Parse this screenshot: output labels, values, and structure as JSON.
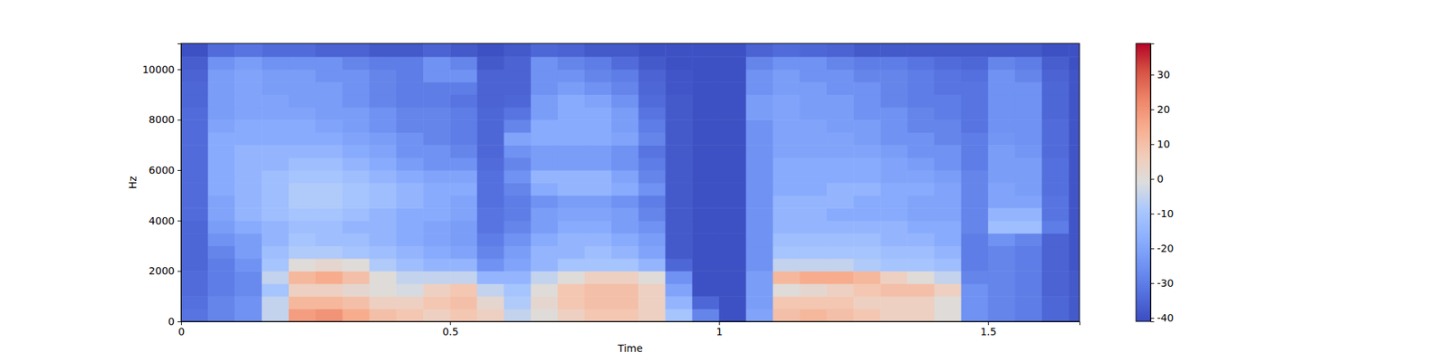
{
  "chart_data": {
    "type": "heatmap",
    "xlabel": "Time",
    "ylabel": "Hz",
    "color": "coolwarm",
    "xlim": [
      0,
      1.67
    ],
    "ylim": [
      0,
      11025
    ],
    "xticks": [
      0,
      0.5,
      1,
      1.5
    ],
    "yticks": [
      0,
      2000,
      4000,
      6000,
      8000,
      10000
    ],
    "colorbar_range": [
      -41,
      39
    ],
    "colorbar_ticks": [
      -40,
      -30,
      -20,
      -10,
      0,
      10,
      20,
      30
    ],
    "x": [
      0,
      0.05,
      0.1,
      0.15,
      0.2,
      0.25,
      0.3,
      0.35,
      0.4,
      0.45,
      0.5,
      0.55,
      0.6,
      0.65,
      0.7,
      0.75,
      0.8,
      0.85,
      0.9,
      0.95,
      1.0,
      1.05,
      1.1,
      1.15,
      1.2,
      1.25,
      1.3,
      1.35,
      1.4,
      1.45,
      1.5,
      1.55,
      1.6,
      1.65
    ],
    "y": [
      0,
      500,
      1000,
      1500,
      2000,
      2500,
      3000,
      3500,
      4000,
      4500,
      5000,
      5500,
      6000,
      6500,
      7000,
      7500,
      8000,
      8500,
      9000,
      9500,
      10000,
      10500
    ],
    "z": [
      [
        -32,
        -28,
        -25,
        -5,
        18,
        20,
        15,
        10,
        8,
        5,
        8,
        5,
        -5,
        0,
        5,
        8,
        8,
        5,
        -10,
        -28,
        -40,
        -20,
        10,
        12,
        10,
        8,
        5,
        5,
        0,
        -25,
        -28,
        -30,
        -35,
        -38
      ],
      [
        -33,
        -28,
        -25,
        -5,
        12,
        12,
        10,
        5,
        5,
        8,
        10,
        2,
        -8,
        2,
        8,
        10,
        10,
        5,
        -15,
        -35,
        -40,
        -22,
        8,
        8,
        8,
        5,
        5,
        5,
        0,
        -25,
        -28,
        -30,
        -35,
        -38
      ],
      [
        -34,
        -30,
        -27,
        -10,
        5,
        5,
        2,
        0,
        -2,
        5,
        8,
        -5,
        -10,
        0,
        8,
        10,
        10,
        5,
        -20,
        -40,
        -40,
        -22,
        0,
        2,
        5,
        8,
        10,
        10,
        5,
        -25,
        -28,
        -30,
        -36,
        -38
      ],
      [
        -34,
        -30,
        -27,
        -5,
        12,
        15,
        10,
        0,
        -5,
        -5,
        -5,
        -15,
        -15,
        -5,
        0,
        5,
        5,
        0,
        -25,
        -40,
        -40,
        -22,
        12,
        15,
        15,
        12,
        5,
        0,
        -5,
        -28,
        -28,
        -30,
        -36,
        -38
      ],
      [
        -35,
        -30,
        -25,
        -10,
        0,
        2,
        0,
        -8,
        -12,
        -15,
        -15,
        -25,
        -20,
        -15,
        -10,
        -10,
        -10,
        -15,
        -35,
        -40,
        -40,
        -25,
        -5,
        -5,
        -5,
        -8,
        -10,
        -10,
        -12,
        -30,
        -28,
        -30,
        -36,
        -39
      ],
      [
        -35,
        -28,
        -22,
        -12,
        -8,
        -8,
        -10,
        -12,
        -15,
        -18,
        -20,
        -28,
        -22,
        -15,
        -15,
        -12,
        -15,
        -20,
        -38,
        -40,
        -40,
        -25,
        -10,
        -10,
        -10,
        -10,
        -12,
        -12,
        -15,
        -30,
        -28,
        -30,
        -36,
        -39
      ],
      [
        -35,
        -25,
        -22,
        -15,
        -10,
        -12,
        -12,
        -15,
        -18,
        -20,
        -22,
        -30,
        -25,
        -18,
        -15,
        -15,
        -18,
        -22,
        -38,
        -40,
        -40,
        -25,
        -12,
        -12,
        -12,
        -12,
        -15,
        -15,
        -18,
        -30,
        -25,
        -28,
        -36,
        -39
      ],
      [
        -35,
        -22,
        -18,
        -15,
        -12,
        -12,
        -15,
        -15,
        -18,
        -20,
        -22,
        -32,
        -28,
        -22,
        -18,
        -18,
        -22,
        -25,
        -38,
        -40,
        -40,
        -25,
        -15,
        -15,
        -15,
        -15,
        -15,
        -18,
        -18,
        -28,
        -12,
        -12,
        -30,
        -39
      ],
      [
        -34,
        -20,
        -15,
        -12,
        -10,
        -10,
        -12,
        -15,
        -18,
        -18,
        -20,
        -32,
        -30,
        -22,
        -20,
        -20,
        -22,
        -28,
        -38,
        -40,
        -40,
        -25,
        -15,
        -15,
        -18,
        -18,
        -18,
        -20,
        -20,
        -28,
        -15,
        -15,
        -32,
        -39
      ],
      [
        -34,
        -20,
        -15,
        -12,
        -8,
        -8,
        -10,
        -12,
        -15,
        -18,
        -20,
        -33,
        -30,
        -25,
        -22,
        -22,
        -25,
        -30,
        -38,
        -40,
        -40,
        -25,
        -15,
        -15,
        -15,
        -18,
        -18,
        -20,
        -20,
        -28,
        -20,
        -20,
        -32,
        -39
      ],
      [
        -34,
        -18,
        -15,
        -12,
        -8,
        -8,
        -10,
        -12,
        -15,
        -18,
        -18,
        -33,
        -28,
        -18,
        -15,
        -15,
        -18,
        -25,
        -38,
        -40,
        -40,
        -25,
        -18,
        -18,
        -15,
        -15,
        -18,
        -18,
        -20,
        -28,
        -20,
        -22,
        -33,
        -39
      ],
      [
        -34,
        -18,
        -15,
        -12,
        -10,
        -10,
        -12,
        -15,
        -18,
        -20,
        -20,
        -33,
        -25,
        -15,
        -15,
        -15,
        -20,
        -28,
        -38,
        -40,
        -40,
        -25,
        -18,
        -18,
        -18,
        -18,
        -20,
        -20,
        -22,
        -28,
        -22,
        -22,
        -33,
        -39
      ],
      [
        -34,
        -18,
        -15,
        -15,
        -12,
        -12,
        -15,
        -18,
        -22,
        -25,
        -25,
        -34,
        -28,
        -22,
        -22,
        -22,
        -25,
        -30,
        -38,
        -40,
        -40,
        -25,
        -18,
        -18,
        -18,
        -18,
        -20,
        -22,
        -25,
        -30,
        -22,
        -22,
        -33,
        -39
      ],
      [
        -34,
        -18,
        -15,
        -15,
        -15,
        -15,
        -18,
        -20,
        -25,
        -25,
        -28,
        -35,
        -25,
        -22,
        -22,
        -22,
        -25,
        -32,
        -38,
        -40,
        -40,
        -25,
        -20,
        -20,
        -20,
        -20,
        -22,
        -25,
        -25,
        -30,
        -22,
        -24,
        -34,
        -39
      ],
      [
        -34,
        -18,
        -18,
        -18,
        -18,
        -18,
        -20,
        -22,
        -25,
        -28,
        -30,
        -35,
        -20,
        -18,
        -18,
        -18,
        -20,
        -28,
        -38,
        -40,
        -40,
        -25,
        -20,
        -20,
        -20,
        -22,
        -25,
        -25,
        -28,
        -30,
        -24,
        -25,
        -34,
        -39
      ],
      [
        -34,
        -20,
        -18,
        -18,
        -18,
        -20,
        -22,
        -25,
        -28,
        -28,
        -30,
        -35,
        -28,
        -18,
        -18,
        -18,
        -22,
        -30,
        -38,
        -40,
        -40,
        -25,
        -20,
        -20,
        -22,
        -22,
        -25,
        -28,
        -28,
        -32,
        -25,
        -25,
        -34,
        -39
      ],
      [
        -34,
        -22,
        -20,
        -20,
        -20,
        -22,
        -22,
        -25,
        -28,
        -28,
        -30,
        -35,
        -32,
        -22,
        -18,
        -18,
        -22,
        -32,
        -38,
        -40,
        -40,
        -22,
        -20,
        -22,
        -22,
        -25,
        -25,
        -28,
        -30,
        -32,
        -25,
        -25,
        -35,
        -39
      ],
      [
        -35,
        -22,
        -20,
        -20,
        -22,
        -22,
        -25,
        -28,
        -30,
        -30,
        -32,
        -36,
        -35,
        -22,
        -18,
        -20,
        -25,
        -34,
        -38,
        -40,
        -40,
        -22,
        -20,
        -22,
        -22,
        -25,
        -28,
        -30,
        -30,
        -32,
        -25,
        -25,
        -35,
        -39
      ],
      [
        -35,
        -22,
        -20,
        -22,
        -22,
        -22,
        -25,
        -28,
        -30,
        -30,
        -30,
        -36,
        -36,
        -25,
        -22,
        -25,
        -28,
        -35,
        -39,
        -40,
        -40,
        -25,
        -22,
        -22,
        -25,
        -25,
        -28,
        -30,
        -32,
        -32,
        -25,
        -25,
        -35,
        -39
      ],
      [
        -36,
        -22,
        -20,
        -22,
        -22,
        -25,
        -25,
        -28,
        -30,
        -25,
        -25,
        -36,
        -36,
        -25,
        -25,
        -28,
        -30,
        -36,
        -39,
        -40,
        -40,
        -25,
        -22,
        -25,
        -25,
        -28,
        -28,
        -30,
        -32,
        -33,
        -25,
        -28,
        -36,
        -39
      ],
      [
        -37,
        -25,
        -22,
        -25,
        -25,
        -25,
        -28,
        -30,
        -30,
        -25,
        -28,
        -38,
        -36,
        -25,
        -28,
        -30,
        -34,
        -38,
        -40,
        -40,
        -40,
        -28,
        -25,
        -25,
        -28,
        -30,
        -30,
        -32,
        -34,
        -35,
        -28,
        -30,
        -37,
        -40
      ],
      [
        -40,
        -34,
        -32,
        -34,
        -34,
        -36,
        -36,
        -38,
        -38,
        -36,
        -38,
        -40,
        -38,
        -35,
        -36,
        -38,
        -38,
        -40,
        -40,
        -40,
        -40,
        -36,
        -34,
        -35,
        -36,
        -38,
        -38,
        -38,
        -38,
        -38,
        -38,
        -38,
        -40,
        -40
      ]
    ]
  }
}
